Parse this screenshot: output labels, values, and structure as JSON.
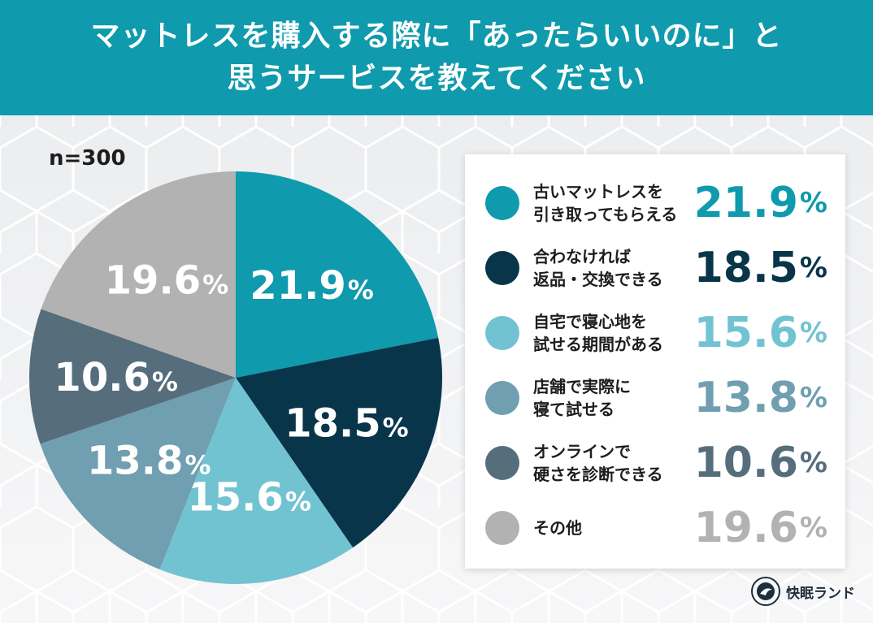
{
  "header": {
    "line1": "マットレスを購入する際に「あったらいいのに」と",
    "line2": "思うサービスを教えてください"
  },
  "sample_size": "n=300",
  "brand": {
    "name": "快眠ランド",
    "icon": "kaimin-land-logo-icon"
  },
  "colors": {
    "header_bg": "#0f9aad",
    "slices": [
      "#0f9aad",
      "#08354a",
      "#72c3d1",
      "#6f9fb0",
      "#566e7c",
      "#b2b2b2"
    ]
  },
  "chart_data": {
    "type": "pie",
    "unit": "%",
    "slices": [
      {
        "label": "古いマットレスを\n引き取ってもらえる",
        "value": 21.9,
        "display": "21.9",
        "color": "#0f9aad"
      },
      {
        "label": "合わなければ\n返品・交換できる",
        "value": 18.5,
        "display": "18.5",
        "color": "#08354a"
      },
      {
        "label": "自宅で寝心地を\n試せる期間がある",
        "value": 15.6,
        "display": "15.6",
        "color": "#72c3d1"
      },
      {
        "label": "店舗で実際に\n寝て試せる",
        "value": 13.8,
        "display": "13.8",
        "color": "#6f9fb0"
      },
      {
        "label": "オンラインで\n硬さを診断できる",
        "value": 10.6,
        "display": "10.6",
        "color": "#566e7c"
      },
      {
        "label": "その他",
        "value": 19.6,
        "display": "19.6",
        "color": "#b2b2b2"
      }
    ]
  }
}
